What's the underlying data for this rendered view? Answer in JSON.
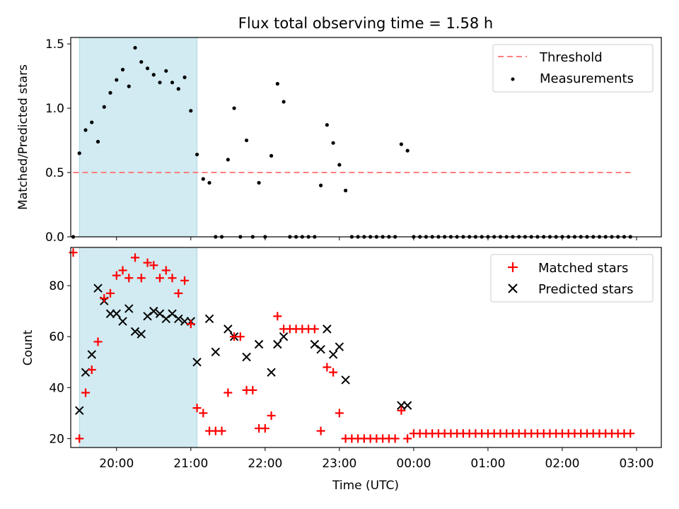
{
  "chart_data": [
    {
      "type": "scatter",
      "title": "Flux total observing time = 1.58 h",
      "xlabel": "",
      "ylabel": "Matched/Predicted stars",
      "xlim": [
        "19:23",
        "03:20"
      ],
      "ylim": [
        0,
        1.55
      ],
      "x_ticks": [
        "20:00",
        "21:00",
        "22:00",
        "23:00",
        "00:00",
        "01:00",
        "02:00",
        "03:00"
      ],
      "y_ticks": [
        "0.0",
        "0.5",
        "1.0",
        "1.5"
      ],
      "shaded_interval": [
        "19:30",
        "21:05"
      ],
      "legend_position": "upper right",
      "threshold": {
        "name": "Threshold",
        "value": 0.5,
        "x_range": [
          "19:25",
          "02:58"
        ],
        "color": "#ff7f7f"
      },
      "series": [
        {
          "name": "Measurements",
          "color": "#000000",
          "x": [
            "19:25",
            "19:30",
            "19:35",
            "19:40",
            "19:45",
            "19:50",
            "19:55",
            "20:00",
            "20:05",
            "20:10",
            "20:15",
            "20:20",
            "20:25",
            "20:30",
            "20:35",
            "20:40",
            "20:45",
            "20:50",
            "20:55",
            "21:00",
            "21:05",
            "21:10",
            "21:15",
            "21:20",
            "21:25",
            "21:30",
            "21:35",
            "21:40",
            "21:45",
            "21:50",
            "21:55",
            "22:00",
            "22:05",
            "22:10",
            "22:15",
            "22:20",
            "22:25",
            "22:30",
            "22:35",
            "22:40",
            "22:45",
            "22:50",
            "22:55",
            "23:00",
            "23:05",
            "23:10",
            "23:15",
            "23:20",
            "23:25",
            "23:30",
            "23:35",
            "23:40",
            "23:45",
            "23:50",
            "23:55",
            "00:00",
            "00:05",
            "00:10",
            "00:15",
            "00:20",
            "00:25",
            "00:30",
            "00:35",
            "00:40",
            "00:45",
            "00:50",
            "00:55",
            "01:00",
            "01:05",
            "01:10",
            "01:15",
            "01:20",
            "01:25",
            "01:30",
            "01:35",
            "01:40",
            "01:45",
            "01:50",
            "01:55",
            "02:00",
            "02:05",
            "02:10",
            "02:15",
            "02:20",
            "02:25",
            "02:30",
            "02:35",
            "02:40",
            "02:45",
            "02:50",
            "02:55"
          ],
          "values": [
            0.0,
            0.65,
            0.83,
            0.89,
            0.74,
            1.01,
            1.12,
            1.22,
            1.3,
            1.17,
            1.47,
            1.36,
            1.31,
            1.26,
            1.2,
            1.29,
            1.2,
            1.15,
            1.24,
            0.98,
            0.64,
            0.45,
            0.42,
            0.0,
            0.0,
            0.6,
            1.0,
            0.0,
            0.75,
            0.0,
            0.42,
            0.0,
            0.63,
            1.19,
            1.05,
            0.0,
            0.0,
            0.0,
            0.0,
            0.0,
            0.4,
            0.87,
            0.73,
            0.56,
            0.36,
            0.0,
            0.0,
            0.0,
            0.0,
            0.0,
            0.0,
            0.0,
            0.0,
            0.72,
            0.67,
            0.0,
            0.0,
            0.0,
            0.0,
            0.0,
            0.0,
            0.0,
            0.0,
            0.0,
            0.0,
            0.0,
            0.0,
            0.0,
            0.0,
            0.0,
            0.0,
            0.0,
            0.0,
            0.0,
            0.0,
            0.0,
            0.0,
            0.0,
            0.0,
            0.0,
            0.0,
            0.0,
            0.0,
            0.0,
            0.0,
            0.0,
            0.0,
            0.0,
            0.0,
            0.0,
            0.0
          ]
        }
      ]
    },
    {
      "type": "scatter",
      "title": "",
      "xlabel": "Time (UTC)",
      "ylabel": "Count",
      "xlim": [
        "19:23",
        "03:20"
      ],
      "ylim": [
        16.5,
        95
      ],
      "x_ticks": [
        "20:00",
        "21:00",
        "22:00",
        "23:00",
        "00:00",
        "01:00",
        "02:00",
        "03:00"
      ],
      "y_ticks": [
        "20",
        "40",
        "60",
        "80"
      ],
      "shaded_interval": [
        "19:30",
        "21:05"
      ],
      "legend_position": "upper right",
      "series": [
        {
          "name": "Matched stars",
          "marker": "+",
          "color": "#ff0000",
          "x": [
            "19:25",
            "19:30",
            "19:35",
            "19:40",
            "19:45",
            "19:50",
            "19:55",
            "20:00",
            "20:05",
            "20:10",
            "20:15",
            "20:20",
            "20:25",
            "20:30",
            "20:35",
            "20:40",
            "20:45",
            "20:50",
            "20:55",
            "21:00",
            "21:05",
            "21:10",
            "21:15",
            "21:20",
            "21:25",
            "21:30",
            "21:35",
            "21:40",
            "21:45",
            "21:50",
            "21:55",
            "22:00",
            "22:05",
            "22:10",
            "22:15",
            "22:20",
            "22:25",
            "22:30",
            "22:35",
            "22:40",
            "22:45",
            "22:50",
            "22:55",
            "23:00",
            "23:05",
            "23:10",
            "23:15",
            "23:20",
            "23:25",
            "23:30",
            "23:35",
            "23:40",
            "23:45",
            "23:50",
            "23:55",
            "00:00",
            "00:05",
            "00:10",
            "00:15",
            "00:20",
            "00:25",
            "00:30",
            "00:35",
            "00:40",
            "00:45",
            "00:50",
            "00:55",
            "01:00",
            "01:05",
            "01:10",
            "01:15",
            "01:20",
            "01:25",
            "01:30",
            "01:35",
            "01:40",
            "01:45",
            "01:50",
            "01:55",
            "02:00",
            "02:05",
            "02:10",
            "02:15",
            "02:20",
            "02:25",
            "02:30",
            "02:35",
            "02:40",
            "02:45",
            "02:50",
            "02:55"
          ],
          "values": [
            93,
            20,
            38,
            47,
            58,
            75,
            77,
            84,
            86,
            83,
            91,
            83,
            89,
            88,
            83,
            86,
            83,
            77,
            82,
            65,
            32,
            30,
            23,
            23,
            23,
            38,
            60,
            60,
            39,
            39,
            24,
            24,
            29,
            68,
            63,
            63,
            63,
            63,
            63,
            63,
            23,
            48,
            46,
            30,
            20,
            20,
            20,
            20,
            20,
            20,
            20,
            20,
            20,
            31,
            20,
            22,
            22,
            22,
            22,
            22,
            22,
            22,
            22,
            22,
            22,
            22,
            22,
            22,
            22,
            22,
            22,
            22,
            22,
            22,
            22,
            22,
            22,
            22,
            22,
            22,
            22,
            22,
            22,
            22,
            22,
            22,
            22,
            22,
            22,
            22,
            22
          ]
        },
        {
          "name": "Predicted stars",
          "marker": "x",
          "color": "#000000",
          "x": [
            "19:30",
            "19:35",
            "19:40",
            "19:45",
            "19:50",
            "19:55",
            "20:00",
            "20:05",
            "20:10",
            "20:15",
            "20:20",
            "20:25",
            "20:30",
            "20:35",
            "20:40",
            "20:45",
            "20:50",
            "20:55",
            "21:00",
            "21:05",
            "21:15",
            "21:20",
            "21:30",
            "21:35",
            "21:45",
            "21:55",
            "22:05",
            "22:10",
            "22:15",
            "22:40",
            "22:45",
            "22:50",
            "22:55",
            "23:00",
            "23:05",
            "23:50",
            "23:55"
          ],
          "values": [
            31,
            46,
            53,
            79,
            74,
            69,
            69,
            66,
            71,
            62,
            61,
            68,
            70,
            69,
            67,
            69,
            67,
            66,
            66,
            50,
            67,
            54,
            63,
            60,
            52,
            57,
            46,
            57,
            60,
            57,
            55,
            63,
            53,
            56,
            43,
            33,
            33
          ]
        }
      ]
    }
  ]
}
